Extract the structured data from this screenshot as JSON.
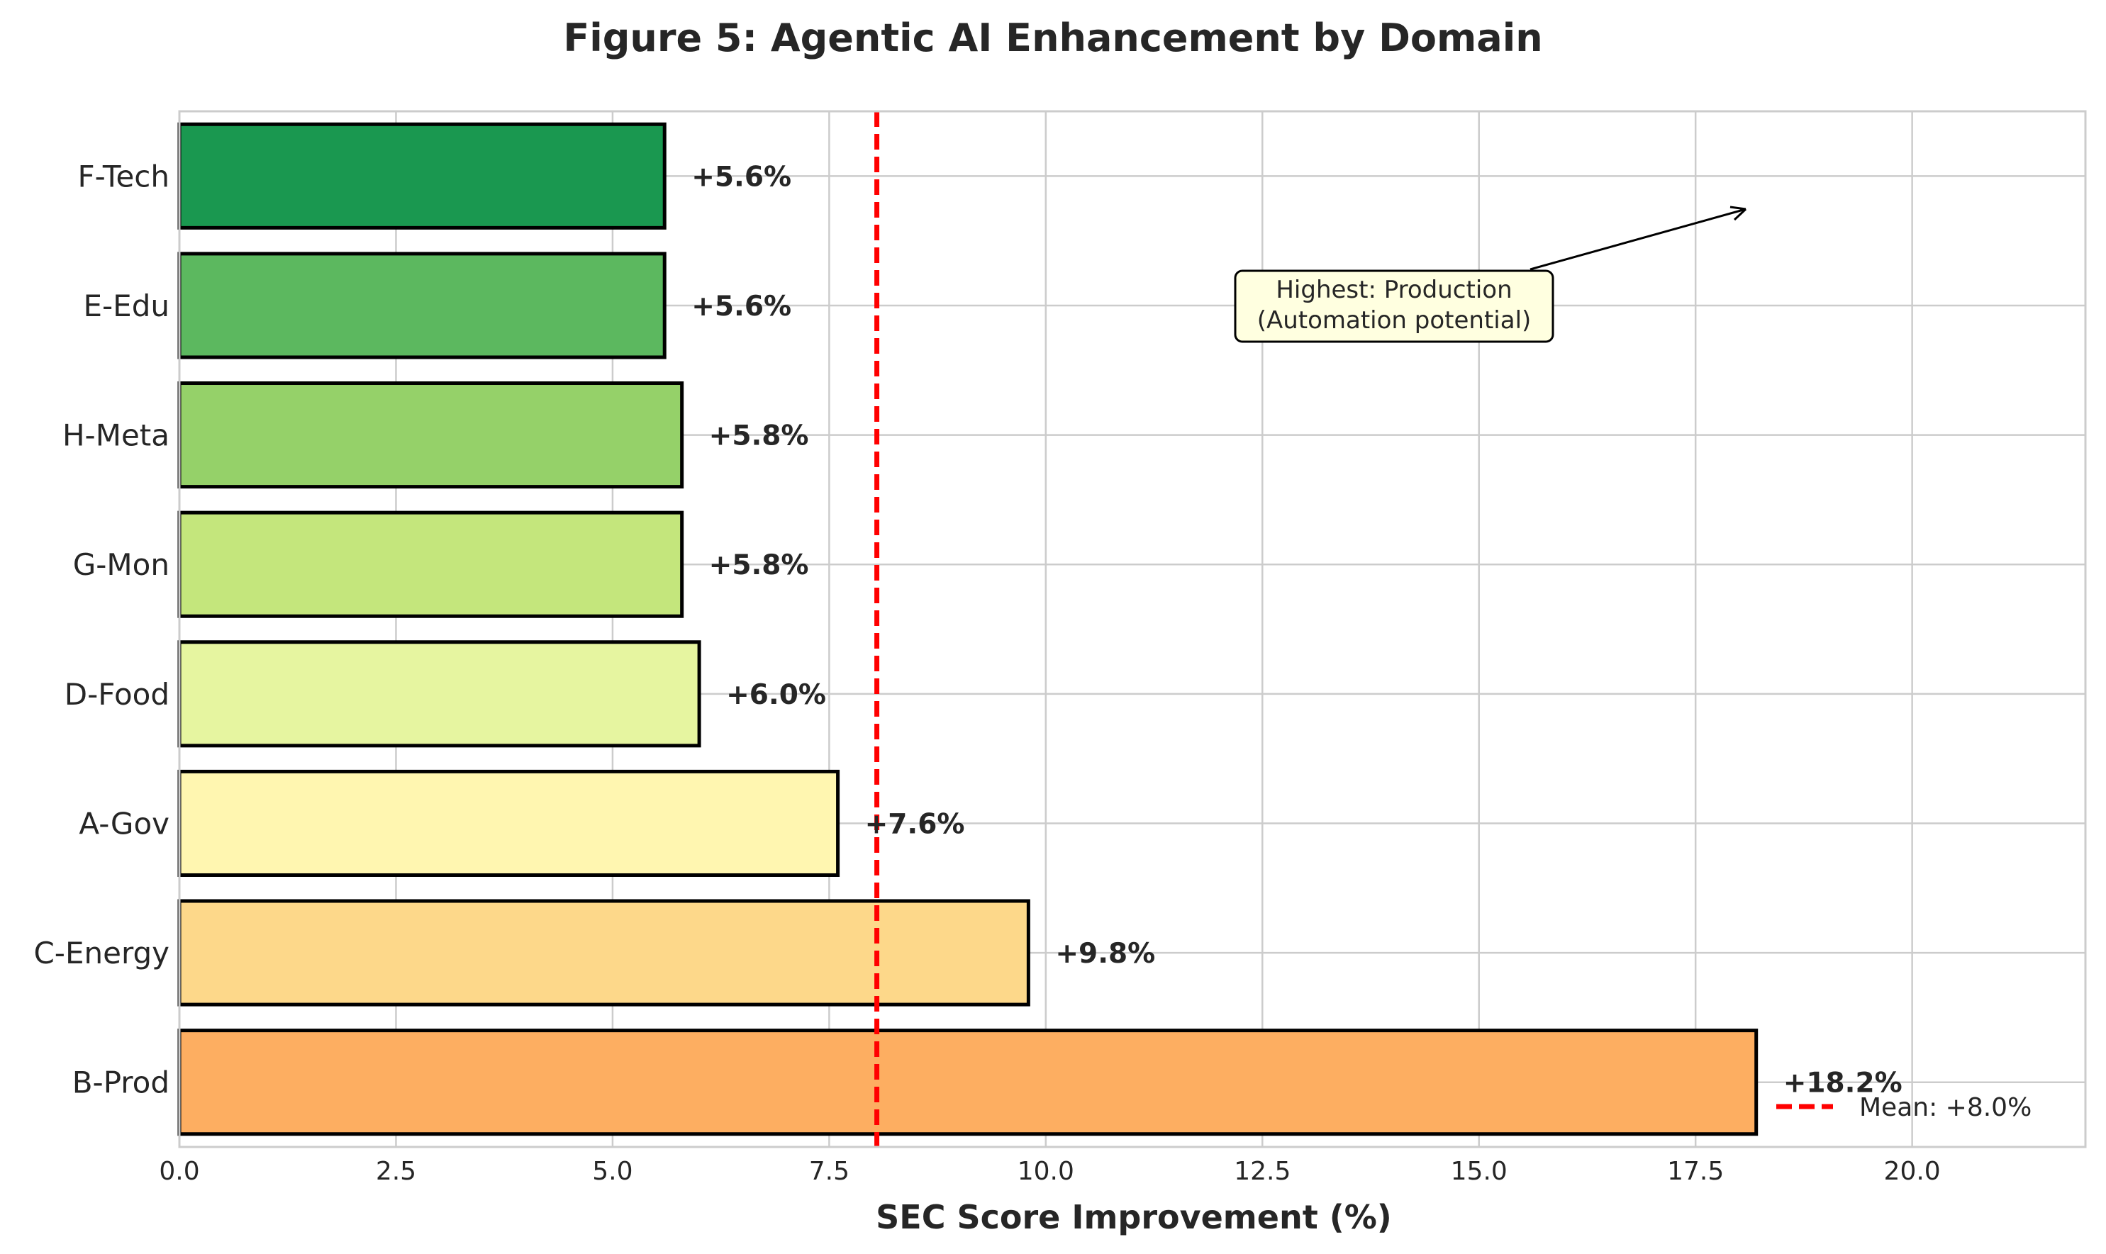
{
  "chart_data": {
    "type": "bar",
    "orientation": "horizontal",
    "title": "Figure 5: Agentic AI Enhancement by Domain",
    "xlabel": "SEC Score Improvement (%)",
    "ylabel": "",
    "xlim": [
      0,
      22
    ],
    "xticks": [
      "0.0",
      "2.5",
      "5.0",
      "7.5",
      "10.0",
      "12.5",
      "15.0",
      "17.5",
      "20.0"
    ],
    "xtick_values": [
      0,
      2.5,
      5,
      7.5,
      10,
      12.5,
      15,
      17.5,
      20
    ],
    "grid": true,
    "categories": [
      "B-Prod",
      "C-Energy",
      "A-Gov",
      "D-Food",
      "G-Mon",
      "H-Meta",
      "E-Edu",
      "F-Tech"
    ],
    "values": [
      18.2,
      9.8,
      7.6,
      6.0,
      5.8,
      5.8,
      5.6,
      5.6
    ],
    "data_labels": [
      "+18.2%",
      "+9.8%",
      "+7.6%",
      "+6.0%",
      "+5.8%",
      "+5.8%",
      "+5.6%",
      "+5.6%"
    ],
    "colors": [
      "#fdae61",
      "#fdd88a",
      "#fff6b0",
      "#e6f5a0",
      "#c4e67c",
      "#95d169",
      "#5cb85f",
      "#1a9850"
    ],
    "mean_line": {
      "value": 8.05,
      "color": "#ff0000",
      "label": "Mean: +8.0%"
    },
    "legend_position": "lower-right",
    "annotation": {
      "lines": [
        "Highest: Production",
        "(Automation potential)"
      ],
      "box_color": "#ffffe0"
    }
  }
}
